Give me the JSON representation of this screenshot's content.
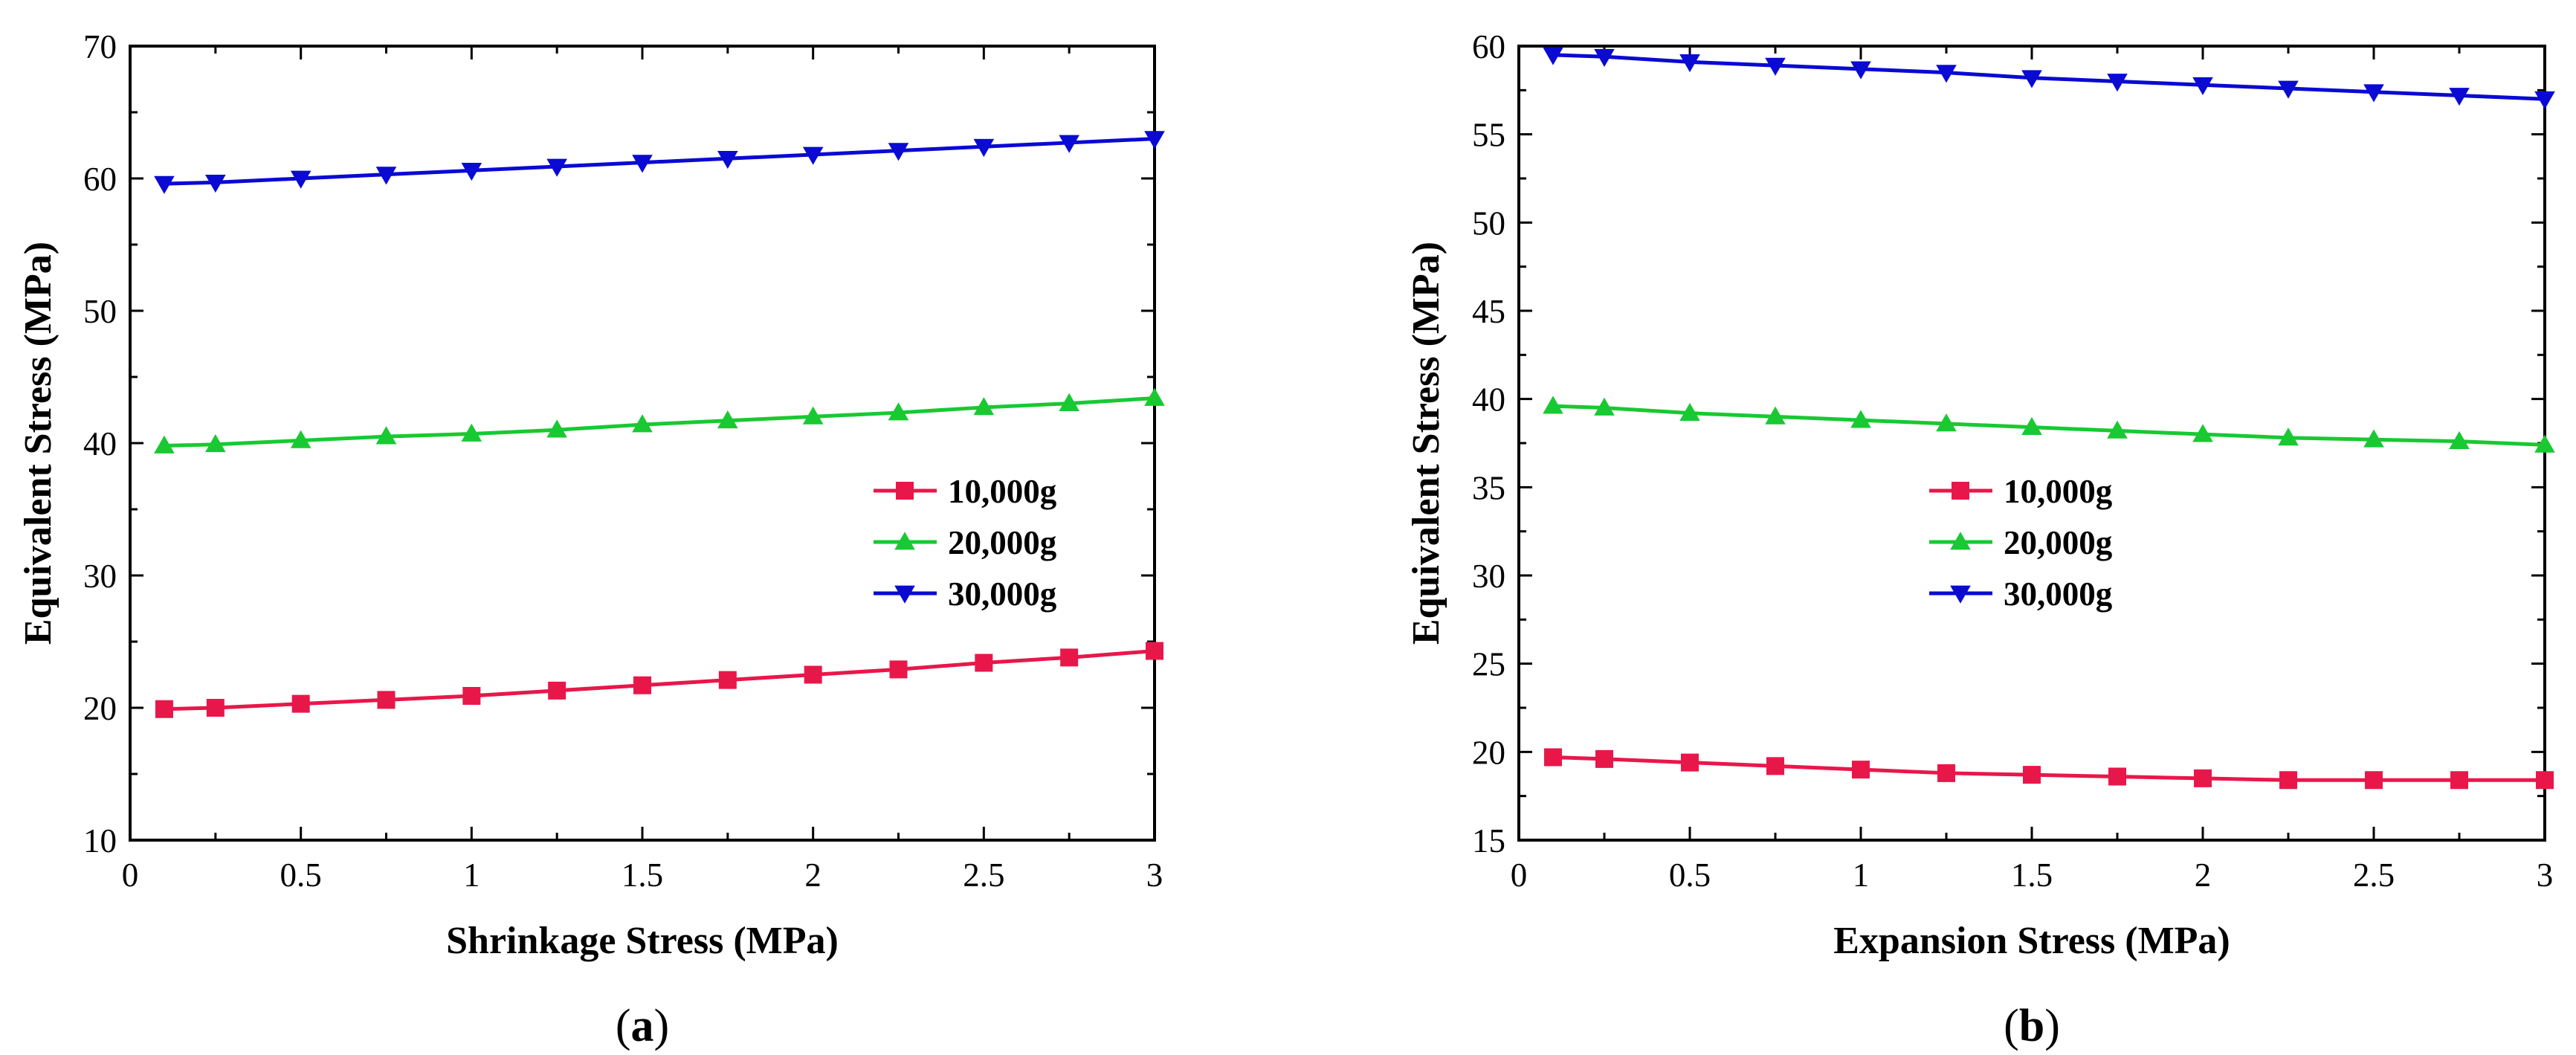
{
  "chart_data": [
    {
      "id": "a",
      "type": "line",
      "panel_label": {
        "open": "(",
        "letter": "a",
        "close": ")"
      },
      "xlabel": "Shrinkage Stress (MPa)",
      "ylabel": "Equivalent Stress (MPa)",
      "xlim": [
        0,
        3
      ],
      "ylim": [
        10,
        70
      ],
      "xticks": [
        0,
        0.5,
        1,
        1.5,
        2,
        2.5,
        3
      ],
      "xtick_labels": [
        "0",
        "0.5",
        "1",
        "1.5",
        "2",
        "2.5",
        "3"
      ],
      "yticks": [
        10,
        20,
        30,
        40,
        50,
        60,
        70
      ],
      "ytick_labels": [
        "10",
        "20",
        "30",
        "40",
        "50",
        "60",
        "70"
      ],
      "legend_position": "center-right",
      "x": [
        0.1,
        0.25,
        0.5,
        0.75,
        1.0,
        1.25,
        1.5,
        1.75,
        2.0,
        2.25,
        2.5,
        2.75,
        3.0
      ],
      "series": [
        {
          "name": "10,000g",
          "color": "#e8174a",
          "marker": "square",
          "values": [
            19.9,
            20.0,
            20.3,
            20.6,
            20.9,
            21.3,
            21.7,
            22.1,
            22.5,
            22.9,
            23.4,
            23.8,
            24.3
          ]
        },
        {
          "name": "20,000g",
          "color": "#18c932",
          "marker": "triangle-up",
          "values": [
            39.8,
            39.9,
            40.2,
            40.5,
            40.7,
            41.0,
            41.4,
            41.7,
            42.0,
            42.3,
            42.7,
            43.0,
            43.4
          ]
        },
        {
          "name": "30,000g",
          "color": "#0a0ad2",
          "marker": "triangle-down",
          "values": [
            59.6,
            59.7,
            60.0,
            60.3,
            60.6,
            60.9,
            61.2,
            61.5,
            61.8,
            62.1,
            62.4,
            62.7,
            63.0
          ]
        }
      ]
    },
    {
      "id": "b",
      "type": "line",
      "panel_label": {
        "open": "(",
        "letter": "b",
        "close": ")"
      },
      "xlabel": "Expansion Stress (MPa)",
      "ylabel": "Equivalent Stress (MPa)",
      "xlim": [
        0,
        3
      ],
      "ylim": [
        15,
        60
      ],
      "xticks": [
        0,
        0.5,
        1,
        1.5,
        2,
        2.5,
        3
      ],
      "xtick_labels": [
        "0",
        "0.5",
        "1",
        "1.5",
        "2",
        "2.5",
        "3"
      ],
      "yticks": [
        15,
        20,
        25,
        30,
        35,
        40,
        45,
        50,
        55,
        60
      ],
      "ytick_labels": [
        "15",
        "20",
        "25",
        "30",
        "35",
        "40",
        "45",
        "50",
        "55",
        "60"
      ],
      "legend_position": "center",
      "x": [
        0.1,
        0.25,
        0.5,
        0.75,
        1.0,
        1.25,
        1.5,
        1.75,
        2.0,
        2.25,
        2.5,
        2.75,
        3.0
      ],
      "series": [
        {
          "name": "10,000g",
          "color": "#e8174a",
          "marker": "square",
          "values": [
            19.7,
            19.6,
            19.4,
            19.2,
            19.0,
            18.8,
            18.7,
            18.6,
            18.5,
            18.4,
            18.4,
            18.4,
            18.4
          ]
        },
        {
          "name": "20,000g",
          "color": "#18c932",
          "marker": "triangle-up",
          "values": [
            39.6,
            39.5,
            39.2,
            39.0,
            38.8,
            38.6,
            38.4,
            38.2,
            38.0,
            37.8,
            37.7,
            37.6,
            37.4
          ]
        },
        {
          "name": "30,000g",
          "color": "#0a0ad2",
          "marker": "triangle-down",
          "values": [
            59.5,
            59.4,
            59.1,
            58.9,
            58.7,
            58.5,
            58.2,
            58.0,
            57.8,
            57.6,
            57.4,
            57.2,
            57.0
          ]
        }
      ]
    }
  ]
}
